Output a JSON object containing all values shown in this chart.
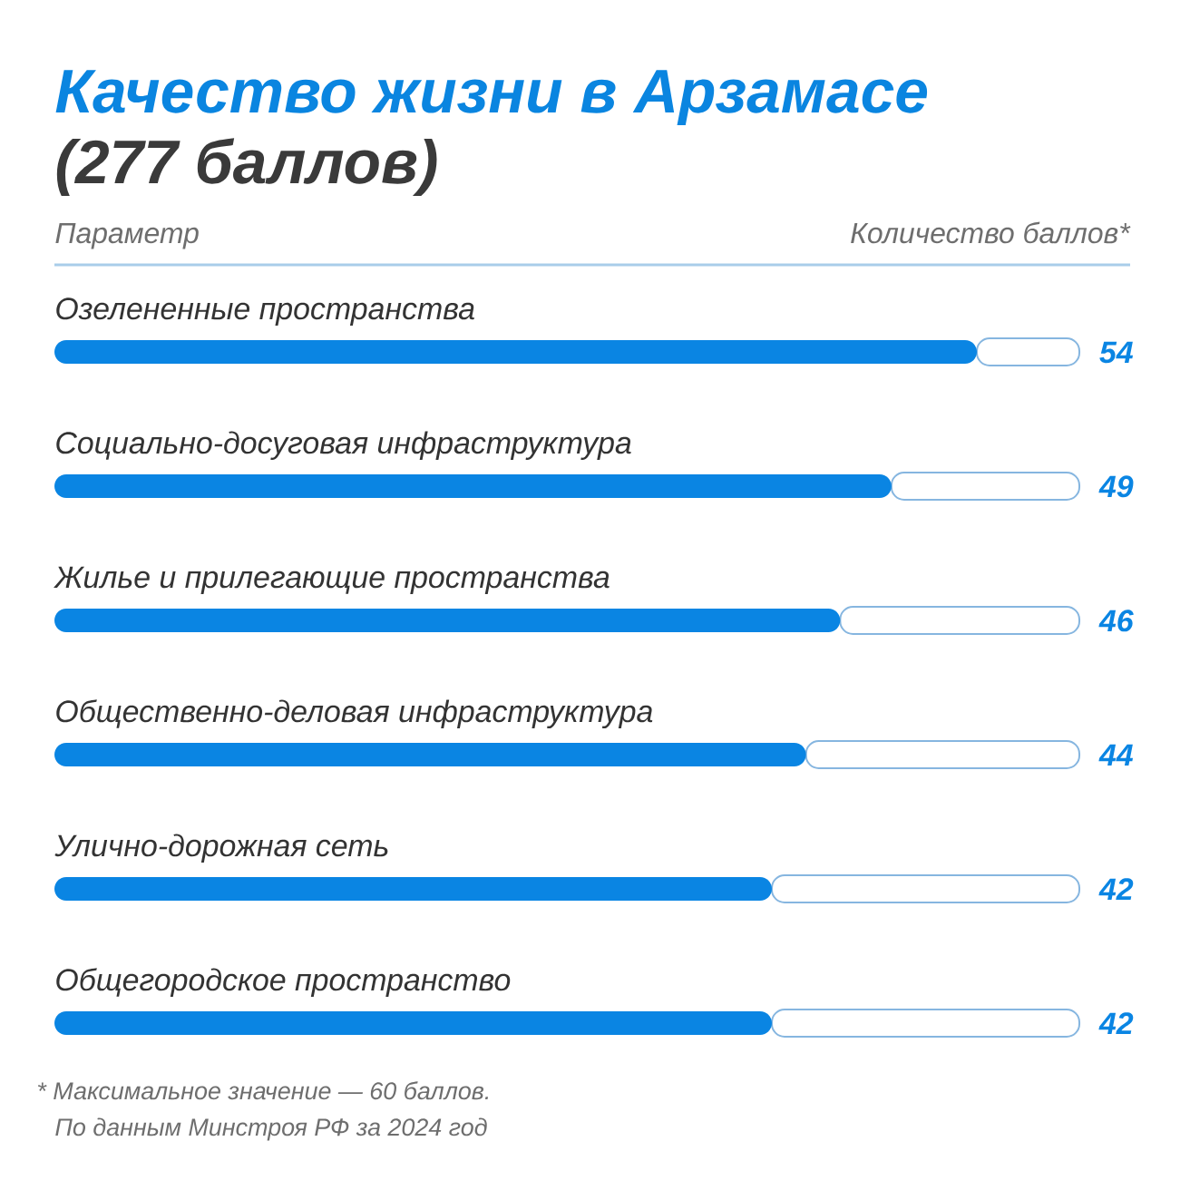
{
  "chart_data": {
    "type": "bar",
    "orientation": "horizontal",
    "stacked": true,
    "title": "Качество жизни в Арзамасе",
    "subtitle": "(277 баллов)",
    "categories": [
      "Озелененные пространства",
      "Социально-досуговая инфраструктура",
      "Жилье и прилегающие пространства",
      "Общественно-деловая инфраструктура",
      "Улично-дорожная сеть",
      "Общегородское пространство"
    ],
    "series": [
      {
        "color": "#0a85e3",
        "values": [
          54,
          49,
          46,
          44,
          42,
          42
        ],
        "value_labels": [
          "54",
          "49",
          "46",
          "44",
          "42",
          "42"
        ]
      },
      {
        "color": "#86b6e0",
        "values": [
          6,
          11,
          14,
          16,
          18,
          18
        ]
      }
    ],
    "xlim": [
      0,
      60
    ],
    "tick_labels": "y",
    "annotations": [
      "Параметр",
      "Количество баллов*",
      "* Максимальное значение — 60 баллов.",
      "По данным Минстроя РФ за 2024 год"
    ]
  }
}
